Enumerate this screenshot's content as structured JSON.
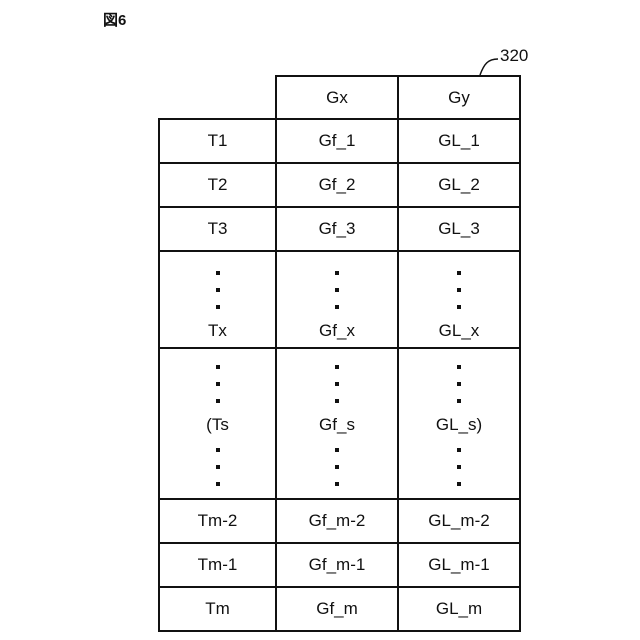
{
  "figure_label": "図6",
  "reference_number": "320",
  "table": {
    "headers": [
      "",
      "Gx",
      "Gy"
    ],
    "rows": [
      [
        "T1",
        "Gf_1",
        "GL_1"
      ],
      [
        "T2",
        "Gf_2",
        "GL_2"
      ],
      [
        "T3",
        "Gf_3",
        "GL_3"
      ],
      [
        "Tx",
        "Gf_x",
        "GL_x"
      ],
      [
        "(Ts",
        "Gf_s",
        "GL_s)"
      ],
      [
        "Tm-2",
        "Gf_m-2",
        "GL_m-2"
      ],
      [
        "Tm-1",
        "Gf_m-1",
        "GL_m-1"
      ],
      [
        "Tm",
        "Gf_m",
        "GL_m"
      ]
    ]
  }
}
